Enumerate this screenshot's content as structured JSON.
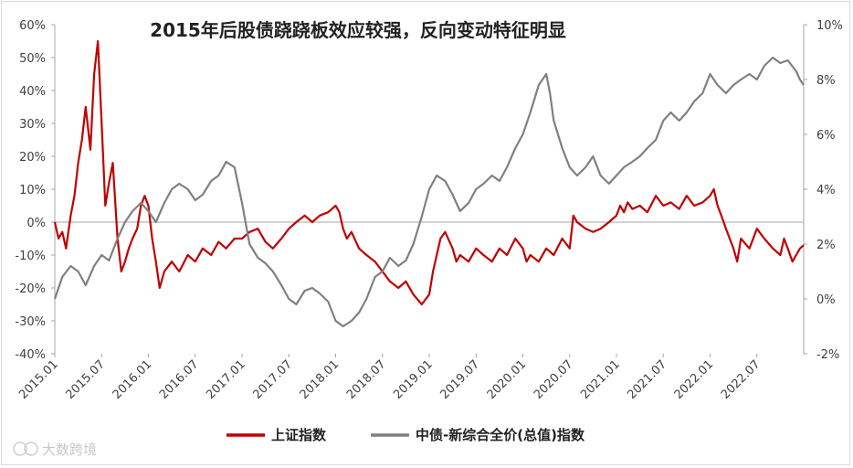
{
  "chart_data": {
    "type": "line",
    "title": "2015年后股债跷跷板效应较强，反向变动特征明显",
    "x_ticks": [
      "2015.01",
      "2015.07",
      "2016.01",
      "2016.07",
      "2017.01",
      "2017.07",
      "2018.01",
      "2018.07",
      "2019.01",
      "2019.07",
      "2020.01",
      "2020.07",
      "2021.01",
      "2021.07",
      "2022.01",
      "2022.07"
    ],
    "x_range": [
      "2015.01",
      "2022.12"
    ],
    "y_left": {
      "ticks": [
        "60%",
        "50%",
        "40%",
        "30%",
        "20%",
        "10%",
        "0%",
        "-10%",
        "-20%",
        "-30%",
        "-40%"
      ],
      "range": [
        -40,
        60
      ]
    },
    "y_right": {
      "ticks": [
        "10%",
        "8%",
        "6%",
        "4%",
        "2%",
        "0%",
        "-2%"
      ],
      "range": [
        -2,
        10
      ]
    },
    "zero_line": true,
    "grid": false,
    "legend_position": "bottom",
    "series": [
      {
        "name": "上证指数",
        "axis": "left",
        "color": "#c00000",
        "x": [
          2015.0,
          2015.04,
          2015.08,
          2015.12,
          2015.17,
          2015.21,
          2015.25,
          2015.29,
          2015.33,
          2015.38,
          2015.42,
          2015.46,
          2015.5,
          2015.54,
          2015.58,
          2015.62,
          2015.67,
          2015.71,
          2015.75,
          2015.79,
          2015.83,
          2015.88,
          2015.92,
          2015.96,
          2016.0,
          2016.04,
          2016.08,
          2016.12,
          2016.17,
          2016.25,
          2016.33,
          2016.42,
          2016.5,
          2016.58,
          2016.67,
          2016.75,
          2016.83,
          2016.92,
          2017.0,
          2017.08,
          2017.17,
          2017.25,
          2017.33,
          2017.42,
          2017.5,
          2017.58,
          2017.67,
          2017.75,
          2017.83,
          2017.92,
          2018.0,
          2018.04,
          2018.08,
          2018.12,
          2018.17,
          2018.25,
          2018.33,
          2018.42,
          2018.5,
          2018.58,
          2018.67,
          2018.75,
          2018.83,
          2018.92,
          2019.0,
          2019.04,
          2019.08,
          2019.12,
          2019.17,
          2019.25,
          2019.29,
          2019.33,
          2019.42,
          2019.5,
          2019.58,
          2019.67,
          2019.75,
          2019.83,
          2019.92,
          2020.0,
          2020.04,
          2020.08,
          2020.17,
          2020.25,
          2020.33,
          2020.42,
          2020.5,
          2020.54,
          2020.58,
          2020.67,
          2020.75,
          2020.83,
          2020.92,
          2021.0,
          2021.04,
          2021.08,
          2021.12,
          2021.17,
          2021.25,
          2021.33,
          2021.42,
          2021.5,
          2021.58,
          2021.67,
          2021.75,
          2021.83,
          2021.92,
          2022.0,
          2022.04,
          2022.08,
          2022.12,
          2022.17,
          2022.21,
          2022.25,
          2022.29,
          2022.33,
          2022.42,
          2022.5,
          2022.58,
          2022.67,
          2022.75,
          2022.79,
          2022.83,
          2022.88,
          2022.92,
          2022.96,
          2023.0
        ],
        "values": [
          0,
          -5,
          -3,
          -8,
          2,
          8,
          18,
          25,
          35,
          22,
          45,
          55,
          30,
          5,
          12,
          18,
          -5,
          -15,
          -12,
          -8,
          -5,
          -2,
          5,
          8,
          5,
          -5,
          -12,
          -20,
          -15,
          -12,
          -15,
          -10,
          -12,
          -8,
          -10,
          -6,
          -8,
          -5,
          -5,
          -3,
          -2,
          -6,
          -8,
          -5,
          -2,
          0,
          2,
          0,
          2,
          3,
          5,
          3,
          -2,
          -5,
          -3,
          -8,
          -10,
          -12,
          -15,
          -18,
          -20,
          -18,
          -22,
          -25,
          -22,
          -15,
          -10,
          -5,
          -3,
          -8,
          -12,
          -10,
          -12,
          -8,
          -10,
          -12,
          -8,
          -10,
          -5,
          -8,
          -12,
          -10,
          -12,
          -8,
          -10,
          -5,
          -8,
          2,
          0,
          -2,
          -3,
          -2,
          0,
          2,
          5,
          3,
          6,
          4,
          5,
          3,
          8,
          5,
          6,
          4,
          8,
          5,
          6,
          8,
          10,
          5,
          2,
          -2,
          -5,
          -8,
          -12,
          -5,
          -8,
          -2,
          -5,
          -8,
          -10,
          -5,
          -8,
          -12,
          -10,
          -8,
          -7
        ]
      },
      {
        "name": "中债-新综合全价(总值)指数",
        "axis": "right",
        "color": "#808080",
        "x": [
          2015.0,
          2015.08,
          2015.17,
          2015.25,
          2015.33,
          2015.42,
          2015.5,
          2015.58,
          2015.67,
          2015.75,
          2015.83,
          2015.92,
          2016.0,
          2016.08,
          2016.17,
          2016.25,
          2016.33,
          2016.42,
          2016.5,
          2016.58,
          2016.67,
          2016.75,
          2016.83,
          2016.92,
          2017.0,
          2017.08,
          2017.17,
          2017.25,
          2017.33,
          2017.42,
          2017.5,
          2017.58,
          2017.67,
          2017.75,
          2017.83,
          2017.92,
          2018.0,
          2018.08,
          2018.17,
          2018.25,
          2018.33,
          2018.42,
          2018.5,
          2018.58,
          2018.67,
          2018.75,
          2018.83,
          2018.92,
          2019.0,
          2019.08,
          2019.17,
          2019.25,
          2019.33,
          2019.42,
          2019.5,
          2019.58,
          2019.67,
          2019.75,
          2019.83,
          2019.92,
          2020.0,
          2020.08,
          2020.17,
          2020.25,
          2020.29,
          2020.33,
          2020.42,
          2020.5,
          2020.58,
          2020.67,
          2020.75,
          2020.83,
          2020.92,
          2021.0,
          2021.08,
          2021.17,
          2021.25,
          2021.33,
          2021.42,
          2021.5,
          2021.58,
          2021.67,
          2021.75,
          2021.83,
          2021.92,
          2022.0,
          2022.08,
          2022.17,
          2022.25,
          2022.33,
          2022.42,
          2022.5,
          2022.58,
          2022.67,
          2022.75,
          2022.83,
          2022.92,
          2022.96,
          2023.0
        ],
        "values": [
          0,
          0.8,
          1.2,
          1.0,
          0.5,
          1.2,
          1.6,
          1.4,
          2.2,
          2.8,
          3.2,
          3.5,
          3.2,
          2.8,
          3.5,
          4.0,
          4.2,
          4.0,
          3.6,
          3.8,
          4.3,
          4.5,
          5.0,
          4.8,
          3.5,
          2.0,
          1.5,
          1.3,
          1.0,
          0.5,
          0.0,
          -0.2,
          0.3,
          0.4,
          0.2,
          -0.1,
          -0.8,
          -1.0,
          -0.8,
          -0.5,
          0.0,
          0.8,
          1.0,
          1.5,
          1.2,
          1.4,
          2.0,
          3.0,
          4.0,
          4.5,
          4.3,
          3.8,
          3.2,
          3.5,
          4.0,
          4.2,
          4.5,
          4.3,
          4.8,
          5.5,
          6.0,
          6.8,
          7.8,
          8.2,
          7.5,
          6.5,
          5.5,
          4.8,
          4.5,
          4.8,
          5.2,
          4.5,
          4.2,
          4.5,
          4.8,
          5.0,
          5.2,
          5.5,
          5.8,
          6.5,
          6.8,
          6.5,
          6.8,
          7.2,
          7.5,
          8.2,
          7.8,
          7.5,
          7.8,
          8.0,
          8.2,
          8.0,
          8.5,
          8.8,
          8.6,
          8.7,
          8.3,
          8.0,
          7.8
        ]
      }
    ]
  },
  "watermark": "大数跨境"
}
